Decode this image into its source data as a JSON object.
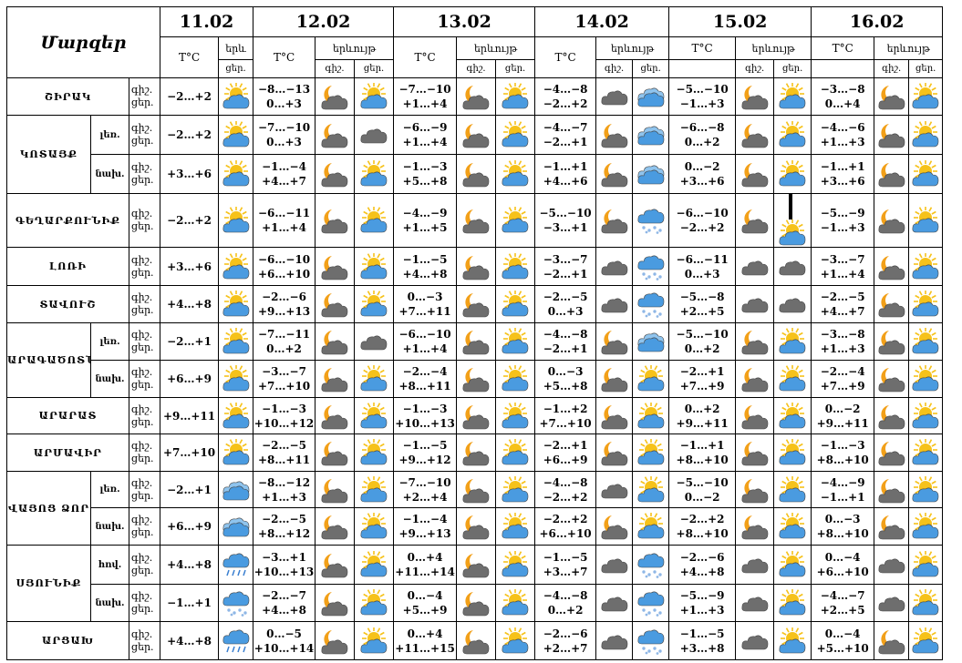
{
  "header": {
    "title": "Մարզեր",
    "dates": [
      "11.02",
      "12.02",
      "13.02",
      "14.02",
      "15.02",
      "16.02"
    ],
    "temp_label": "T°C",
    "phen_label": "երևույթ",
    "phen_label_short": "երև",
    "night_short": "գիշ.",
    "day_short": "ցեր."
  },
  "labels": {
    "night": "գիշ.",
    "day": "ցեր."
  },
  "regions": [
    {
      "name": "ՇԻՐԱԿ",
      "sub": "",
      "rowspan": 1,
      "d11": [
        "",
        "−2…+2"
      ],
      "icon11": "sun-cloud",
      "days": [
        {
          "t": [
            "−8…−13",
            "0…+3"
          ],
          "n": "moon-cloud",
          "d": "sun-cloud"
        },
        {
          "t": [
            "−7…−10",
            "+1…+4"
          ],
          "n": "moon-cloud",
          "d": "sun-cloud"
        },
        {
          "t": [
            "−4…−8",
            "−2…+2"
          ],
          "n": "cloud",
          "d": "cloud-blue"
        },
        {
          "t": [
            "−5…−10",
            "−1…+3"
          ],
          "n": "moon-cloud",
          "d": "sun-cloud"
        },
        {
          "t": [
            "−3…−8",
            "0…+4"
          ],
          "n": "moon-cloud",
          "d": "sun-cloud"
        }
      ]
    },
    {
      "name": "ԿՈՏԱՅՔ",
      "sub": "լեռ.",
      "rowspan": 2,
      "d11": [
        "",
        "−2…+2"
      ],
      "icon11": "sun-cloud",
      "days": [
        {
          "t": [
            "−7…−10",
            "0…+3"
          ],
          "n": "moon-cloud",
          "d": "cloud"
        },
        {
          "t": [
            "−6…−9",
            "+1…+4"
          ],
          "n": "moon-cloud",
          "d": "sun-cloud"
        },
        {
          "t": [
            "−4…−7",
            "−2…+1"
          ],
          "n": "moon-cloud",
          "d": "cloud-blue"
        },
        {
          "t": [
            "−6…−8",
            "0…+2"
          ],
          "n": "moon-cloud",
          "d": "sun-cloud"
        },
        {
          "t": [
            "−4…−6",
            "+1…+3"
          ],
          "n": "moon-cloud",
          "d": "sun-cloud"
        }
      ]
    },
    {
      "name": "",
      "sub": "նախ.",
      "rowspan": 0,
      "d11": [
        "",
        "+3…+6"
      ],
      "icon11": "sun-cloud",
      "days": [
        {
          "t": [
            "−1…−4",
            "+4…+7"
          ],
          "n": "moon-cloud",
          "d": "sun-cloud"
        },
        {
          "t": [
            "−1…−3",
            "+5…+8"
          ],
          "n": "moon-cloud",
          "d": "sun-cloud"
        },
        {
          "t": [
            "−1…+1",
            "+4…+6"
          ],
          "n": "moon-cloud",
          "d": "cloud-blue"
        },
        {
          "t": [
            "0…−2",
            "+3…+6"
          ],
          "n": "moon-cloud",
          "d": "sun-cloud"
        },
        {
          "t": [
            "−1…+1",
            "+3…+6"
          ],
          "n": "moon-cloud",
          "d": "sun-cloud"
        }
      ]
    },
    {
      "name": "ԳԵՂԱՐՔՈՒՆԻՔ",
      "sub": "",
      "rowspan": 1,
      "d11": [
        "",
        "−2…+2"
      ],
      "icon11": "sun-cloud",
      "days": [
        {
          "t": [
            "−6…−11",
            "+1…+4"
          ],
          "n": "moon-cloud",
          "d": "sun-cloud"
        },
        {
          "t": [
            "−4…−9",
            "+1…+5"
          ],
          "n": "moon-cloud",
          "d": "sun-cloud"
        },
        {
          "t": [
            "−5…−10",
            "−3…+1"
          ],
          "n": "moon-cloud",
          "d": "snow"
        },
        {
          "t": [
            "−6…−10",
            "−2…+2"
          ],
          "n": "moon-cloud",
          "d": "sun-cloud"
        },
        {
          "t": [
            "−5…−9",
            "−1…+3"
          ],
          "n": "moon-cloud",
          "d": "sun-cloud"
        }
      ]
    },
    {
      "name": "ԼՈՌԻ",
      "sub": "",
      "rowspan": 1,
      "d11": [
        "",
        "+3…+6"
      ],
      "icon11": "sun-cloud",
      "days": [
        {
          "t": [
            "−6…−10",
            "+6…+10"
          ],
          "n": "moon-cloud",
          "d": "sun-cloud"
        },
        {
          "t": [
            "−1…−5",
            "+4…+8"
          ],
          "n": "moon-cloud",
          "d": "sun-cloud"
        },
        {
          "t": [
            "−3…−7",
            "−2…+1"
          ],
          "n": "cloud",
          "d": "snow"
        },
        {
          "t": [
            "−6…−11",
            "0…+3"
          ],
          "n": "cloud",
          "d": "cloud"
        },
        {
          "t": [
            "−3…−7",
            "+1…+4"
          ],
          "n": "moon-cloud",
          "d": "sun-cloud"
        }
      ]
    },
    {
      "name": "ՏԱՎՈՒՇ",
      "sub": "",
      "rowspan": 1,
      "d11": [
        "",
        "+4…+8"
      ],
      "icon11": "sun-cloud",
      "days": [
        {
          "t": [
            "−2…−6",
            "+9…+13"
          ],
          "n": "moon-cloud",
          "d": "sun-cloud"
        },
        {
          "t": [
            "0…−3",
            "+7…+11"
          ],
          "n": "moon-cloud",
          "d": "sun-cloud"
        },
        {
          "t": [
            "−2…−5",
            "0…+3"
          ],
          "n": "cloud",
          "d": "snow"
        },
        {
          "t": [
            "−5…−8",
            "+2…+5"
          ],
          "n": "cloud",
          "d": "cloud"
        },
        {
          "t": [
            "−2…−5",
            "+4…+7"
          ],
          "n": "moon-cloud",
          "d": "sun-cloud"
        }
      ]
    },
    {
      "name": "ԱՐԱԳԱԾՈՏՆ",
      "sub": "լեռ.",
      "rowspan": 2,
      "d11": [
        "",
        "−2…+1"
      ],
      "icon11": "sun-cloud",
      "days": [
        {
          "t": [
            "−7…−11",
            "0…+2"
          ],
          "n": "moon-cloud",
          "d": "cloud"
        },
        {
          "t": [
            "−6…−10",
            "+1…+4"
          ],
          "n": "moon-cloud",
          "d": "sun-cloud"
        },
        {
          "t": [
            "−4…−8",
            "−2…+1"
          ],
          "n": "moon-cloud",
          "d": "cloud-blue"
        },
        {
          "t": [
            "−5…−10",
            "0…+2"
          ],
          "n": "moon-cloud",
          "d": "sun-cloud"
        },
        {
          "t": [
            "−3…−8",
            "+1…+3"
          ],
          "n": "moon-cloud",
          "d": "sun-cloud"
        }
      ]
    },
    {
      "name": "",
      "sub": "նախ.",
      "rowspan": 0,
      "d11": [
        "",
        "+6…+9"
      ],
      "icon11": "sun-cloud",
      "days": [
        {
          "t": [
            "−3…−7",
            "+7…+10"
          ],
          "n": "moon-cloud",
          "d": "sun-cloud"
        },
        {
          "t": [
            "−2…−4",
            "+8…+11"
          ],
          "n": "moon-cloud",
          "d": "sun-cloud"
        },
        {
          "t": [
            "0…−3",
            "+5…+8"
          ],
          "n": "moon-cloud",
          "d": "sun-cloud"
        },
        {
          "t": [
            "−2…+1",
            "+7…+9"
          ],
          "n": "moon-cloud",
          "d": "sun-cloud"
        },
        {
          "t": [
            "−2…−4",
            "+7…+9"
          ],
          "n": "moon-cloud",
          "d": "sun-cloud"
        }
      ]
    },
    {
      "name": "ԱՐԱՐԱՏ",
      "sub": "",
      "rowspan": 1,
      "d11": [
        "",
        "+9…+11"
      ],
      "icon11": "sun-cloud",
      "days": [
        {
          "t": [
            "−1…−3",
            "+10…+12"
          ],
          "n": "moon-cloud",
          "d": "sun-cloud"
        },
        {
          "t": [
            "−1…−3",
            "+10…+13"
          ],
          "n": "moon-cloud",
          "d": "sun-cloud"
        },
        {
          "t": [
            "−1…+2",
            "+7…+10"
          ],
          "n": "moon-cloud",
          "d": "sun-cloud"
        },
        {
          "t": [
            "0…+2",
            "+9…+11"
          ],
          "n": "moon-cloud",
          "d": "sun-cloud"
        },
        {
          "t": [
            "0…−2",
            "+9…+11"
          ],
          "n": "moon-cloud",
          "d": "sun-cloud"
        }
      ]
    },
    {
      "name": "ԱՐՄԱՎԻՐ",
      "sub": "",
      "rowspan": 1,
      "d11": [
        "",
        "+7…+10"
      ],
      "icon11": "sun-cloud",
      "days": [
        {
          "t": [
            "−2…−5",
            "+8…+11"
          ],
          "n": "moon-cloud",
          "d": "sun-cloud"
        },
        {
          "t": [
            "−1…−5",
            "+9…+12"
          ],
          "n": "moon-cloud",
          "d": "sun-cloud"
        },
        {
          "t": [
            "−2…+1",
            "+6…+9"
          ],
          "n": "moon-cloud",
          "d": "sun-cloud"
        },
        {
          "t": [
            "−1…+1",
            "+8…+10"
          ],
          "n": "moon-cloud",
          "d": "sun-cloud"
        },
        {
          "t": [
            "−1…−3",
            "+8…+10"
          ],
          "n": "moon-cloud",
          "d": "sun-cloud"
        }
      ]
    },
    {
      "name": "ՎԱՅՈՑ ՁՈՐ",
      "sub": "լեռ.",
      "rowspan": 2,
      "d11": [
        "",
        "−2…+1"
      ],
      "icon11": "cloud-blue",
      "days": [
        {
          "t": [
            "−8…−12",
            "+1…+3"
          ],
          "n": "moon-cloud",
          "d": "sun-cloud"
        },
        {
          "t": [
            "−7…−10",
            "+2…+4"
          ],
          "n": "moon-cloud",
          "d": "sun-cloud"
        },
        {
          "t": [
            "−4…−8",
            "−2…+2"
          ],
          "n": "cloud",
          "d": "sun-cloud"
        },
        {
          "t": [
            "−5…−10",
            "0…−2"
          ],
          "n": "moon-cloud",
          "d": "sun-cloud"
        },
        {
          "t": [
            "−4…−9",
            "−1…+1"
          ],
          "n": "moon-cloud",
          "d": "sun-cloud"
        }
      ]
    },
    {
      "name": "",
      "sub": "նախ.",
      "rowspan": 0,
      "d11": [
        "",
        "+6…+9"
      ],
      "icon11": "cloud-blue",
      "days": [
        {
          "t": [
            "−2…−5",
            "+8…+12"
          ],
          "n": "moon-cloud",
          "d": "sun-cloud"
        },
        {
          "t": [
            "−1…−4",
            "+9…+13"
          ],
          "n": "moon-cloud",
          "d": "sun-cloud"
        },
        {
          "t": [
            "−2…+2",
            "+6…+10"
          ],
          "n": "moon-cloud",
          "d": "sun-cloud"
        },
        {
          "t": [
            "−2…+2",
            "+8…+10"
          ],
          "n": "moon-cloud",
          "d": "sun-cloud"
        },
        {
          "t": [
            "0…−3",
            "+8…+10"
          ],
          "n": "moon-cloud",
          "d": "sun-cloud"
        }
      ]
    },
    {
      "name": "ՍՅՈՒՆԻՔ",
      "sub": "հով.",
      "rowspan": 2,
      "d11": [
        "",
        "+4…+8"
      ],
      "icon11": "rain",
      "days": [
        {
          "t": [
            "−3…+1",
            "+10…+13"
          ],
          "n": "moon-cloud",
          "d": "sun-cloud"
        },
        {
          "t": [
            "0…+4",
            "+11…+14"
          ],
          "n": "moon-cloud",
          "d": "sun-cloud"
        },
        {
          "t": [
            "−1…−5",
            "+3…+7"
          ],
          "n": "cloud",
          "d": "snow"
        },
        {
          "t": [
            "−2…−6",
            "+4…+8"
          ],
          "n": "cloud",
          "d": "sun-cloud"
        },
        {
          "t": [
            "0…−4",
            "+6…+10"
          ],
          "n": "cloud",
          "d": "sun-cloud"
        }
      ]
    },
    {
      "name": "",
      "sub": "նախ.",
      "rowspan": 0,
      "d11": [
        "",
        "−1…+1"
      ],
      "icon11": "snow",
      "days": [
        {
          "t": [
            "−2…−7",
            "+4…+8"
          ],
          "n": "moon-cloud",
          "d": "sun-cloud"
        },
        {
          "t": [
            "0…−4",
            "+5…+9"
          ],
          "n": "moon-cloud",
          "d": "sun-cloud"
        },
        {
          "t": [
            "−4…−8",
            "0…+2"
          ],
          "n": "cloud",
          "d": "snow"
        },
        {
          "t": [
            "−5…−9",
            "+1…+3"
          ],
          "n": "cloud",
          "d": "sun-cloud"
        },
        {
          "t": [
            "−4…−7",
            "+2…+5"
          ],
          "n": "cloud",
          "d": "sun-cloud"
        }
      ]
    },
    {
      "name": "ԱՐՑԱԽ",
      "sub": "",
      "rowspan": 1,
      "d11": [
        "",
        "+4…+8"
      ],
      "icon11": "rain",
      "days": [
        {
          "t": [
            "0…−5",
            "+10…+14"
          ],
          "n": "moon-cloud",
          "d": "sun-cloud"
        },
        {
          "t": [
            "0…+4",
            "+11…+15"
          ],
          "n": "moon-cloud",
          "d": "sun-cloud"
        },
        {
          "t": [
            "−2…−6",
            "+2…+7"
          ],
          "n": "cloud",
          "d": "snow"
        },
        {
          "t": [
            "−1…−5",
            "+3…+8"
          ],
          "n": "cloud",
          "d": "sun-cloud"
        },
        {
          "t": [
            "0…−4",
            "+5…+10"
          ],
          "n": "moon-cloud",
          "d": "sun-cloud"
        }
      ]
    }
  ],
  "colors": {
    "sun": "#F6C21A",
    "cloud_gray": "#6E6E6E",
    "cloud_blue": "#4A9BE0",
    "moon": "#F2A019"
  }
}
